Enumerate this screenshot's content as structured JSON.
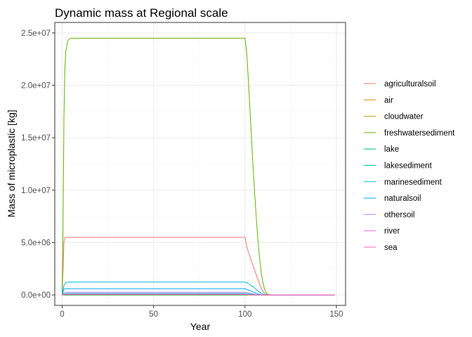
{
  "chart_data": {
    "type": "line",
    "title": "Dynamic mass at Regional scale",
    "xlabel": "Year",
    "ylabel": "Mass of microplastic [kg]",
    "xlim": [
      -4,
      155
    ],
    "ylim": [
      -1000000,
      26000000
    ],
    "x_ticks": [
      0,
      50,
      100,
      150
    ],
    "x_tick_labels": [
      "0",
      "50",
      "100",
      "150"
    ],
    "y_ticks": [
      0,
      5000000,
      10000000,
      15000000,
      20000000,
      25000000
    ],
    "y_tick_labels": [
      "0.0e+00",
      "5.0e+06",
      "1.0e+07",
      "1.5e+07",
      "2.0e+07",
      "2.5e+07"
    ],
    "grid": true,
    "legend_position": "right",
    "x": [
      0,
      0.5,
      1,
      1.5,
      2,
      3,
      4,
      5,
      6,
      8,
      10,
      20,
      50,
      80,
      99,
      100,
      101,
      102,
      103,
      104,
      105,
      106,
      107,
      108,
      109,
      110,
      111,
      112,
      113,
      114,
      115,
      116,
      118,
      120,
      130,
      140,
      149
    ],
    "series": [
      {
        "name": "agriculturalsoil",
        "color": "#F8766D",
        "values": [
          0,
          2300000,
          5000000,
          5450000,
          5490000,
          5500000,
          5500000,
          5500000,
          5500000,
          5500000,
          5500000,
          5500000,
          5500000,
          5500000,
          5500000,
          5500000,
          4600000,
          4000000,
          3500000,
          3000000,
          2500000,
          2000000,
          1500000,
          1000000,
          600000,
          300000,
          120000,
          30000,
          5000,
          0,
          0,
          0,
          0,
          0,
          0,
          0,
          0
        ]
      },
      {
        "name": "air",
        "color": "#DB8E00",
        "values": [
          0,
          0,
          0,
          0,
          0,
          0,
          0,
          0,
          0,
          0,
          0,
          0,
          0,
          0,
          0,
          0,
          0,
          0,
          0,
          0,
          0,
          0,
          0,
          0,
          0,
          0,
          0,
          0,
          0,
          0,
          0,
          0,
          0,
          0,
          0,
          0,
          0
        ]
      },
      {
        "name": "cloudwater",
        "color": "#AEA200",
        "values": [
          0,
          0,
          0,
          0,
          0,
          0,
          0,
          0,
          0,
          0,
          0,
          0,
          0,
          0,
          0,
          0,
          0,
          0,
          0,
          0,
          0,
          0,
          0,
          0,
          0,
          0,
          0,
          0,
          0,
          0,
          0,
          0,
          0,
          0,
          0,
          0,
          0
        ]
      },
      {
        "name": "freshwatersediment",
        "color": "#64B200",
        "values": [
          0,
          6000000,
          17000000,
          21500000,
          23200000,
          24200000,
          24450000,
          24500000,
          24500000,
          24500000,
          24500000,
          24500000,
          24500000,
          24500000,
          24500000,
          24500000,
          23000000,
          20000000,
          16800000,
          13500000,
          10500000,
          7800000,
          5400000,
          3500000,
          2000000,
          1000000,
          400000,
          120000,
          30000,
          5000,
          0,
          0,
          0,
          0,
          0,
          0,
          0
        ]
      },
      {
        "name": "lake",
        "color": "#00BD5C",
        "values": [
          0,
          0,
          0,
          0,
          0,
          0,
          0,
          0,
          0,
          0,
          0,
          0,
          0,
          0,
          0,
          0,
          0,
          0,
          0,
          0,
          0,
          0,
          0,
          0,
          0,
          0,
          0,
          0,
          0,
          0,
          0,
          0,
          0,
          0,
          0,
          0,
          0
        ]
      },
      {
        "name": "lakesediment",
        "color": "#00C1A7",
        "values": [
          0,
          50000,
          100000,
          120000,
          130000,
          135000,
          135000,
          135000,
          135000,
          135000,
          135000,
          135000,
          135000,
          135000,
          135000,
          135000,
          120000,
          100000,
          80000,
          60000,
          40000,
          25000,
          12000,
          5000,
          1000,
          0,
          0,
          0,
          0,
          0,
          0,
          0,
          0,
          0,
          0,
          0,
          0
        ]
      },
      {
        "name": "marinesediment",
        "color": "#00BADE",
        "values": [
          0,
          500000,
          900000,
          1100000,
          1180000,
          1220000,
          1230000,
          1230000,
          1230000,
          1230000,
          1230000,
          1230000,
          1230000,
          1230000,
          1230000,
          1230000,
          1160000,
          1060000,
          950000,
          820000,
          680000,
          540000,
          400000,
          270000,
          160000,
          80000,
          30000,
          8000,
          2000,
          0,
          0,
          0,
          0,
          0,
          0,
          0,
          0
        ]
      },
      {
        "name": "naturalsoil",
        "color": "#00A6FF",
        "values": [
          0,
          300000,
          540000,
          580000,
          590000,
          590000,
          590000,
          590000,
          590000,
          590000,
          590000,
          590000,
          590000,
          590000,
          590000,
          590000,
          520000,
          450000,
          380000,
          300000,
          230000,
          160000,
          100000,
          50000,
          20000,
          5000,
          0,
          0,
          0,
          0,
          0,
          0,
          0,
          0,
          0,
          0,
          0
        ]
      },
      {
        "name": "othersoil",
        "color": "#B385FF",
        "values": [
          0,
          120000,
          230000,
          250000,
          255000,
          255000,
          255000,
          255000,
          255000,
          255000,
          255000,
          255000,
          255000,
          255000,
          255000,
          255000,
          225000,
          190000,
          155000,
          120000,
          85000,
          55000,
          30000,
          12000,
          3000,
          0,
          0,
          0,
          0,
          0,
          0,
          0,
          0,
          0,
          0,
          0,
          0
        ]
      },
      {
        "name": "river",
        "color": "#EF67EB",
        "values": [
          0,
          30000,
          60000,
          70000,
          70000,
          70000,
          70000,
          70000,
          70000,
          70000,
          70000,
          70000,
          70000,
          70000,
          70000,
          70000,
          50000,
          25000,
          10000,
          3000,
          0,
          0,
          0,
          0,
          0,
          0,
          0,
          0,
          0,
          0,
          0,
          0,
          0,
          0,
          0,
          0,
          0
        ]
      },
      {
        "name": "sea",
        "color": "#FF63B6",
        "values": [
          0,
          15000,
          30000,
          35000,
          35000,
          35000,
          35000,
          35000,
          35000,
          35000,
          35000,
          35000,
          35000,
          35000,
          35000,
          35000,
          25000,
          12000,
          5000,
          1000,
          0,
          0,
          0,
          0,
          0,
          0,
          0,
          0,
          0,
          0,
          0,
          0,
          0,
          0,
          0,
          0,
          0
        ]
      }
    ]
  }
}
